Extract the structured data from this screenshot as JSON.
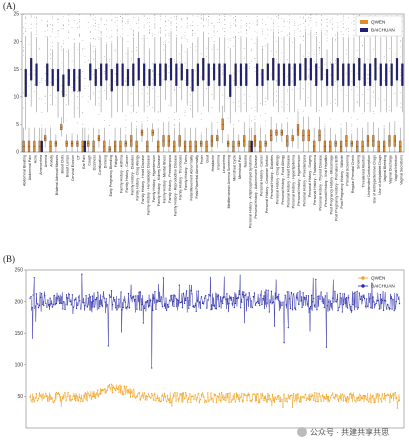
{
  "chart_data": [
    {
      "panel": "(A)",
      "type": "box",
      "legend": [
        "QWEN",
        "BAICHUAN"
      ],
      "colors": {
        "QWEN": "#e08a2c",
        "BAICHUAN": "#1f1f7a"
      },
      "ylim": [
        0,
        25
      ],
      "yticks": [
        0,
        5,
        10,
        15,
        20,
        25
      ],
      "categories": [
        "Abdominal Bloating",
        "Abdominal Pain",
        "Acne",
        "Amenorrhea",
        "Anemia",
        "Anxiety",
        "Bilateral Adnexal Masses",
        "Blood Clots",
        "Breast Lumps",
        "Cervical Erosion",
        "CT",
        "Ear Pain",
        "Cough",
        "Dizziness",
        "Constipation",
        "Drinking",
        "Early Pregnancy Bleeding",
        "Fatigue",
        "Family History - Asthma",
        "Family History - Cancer",
        "Family History - Diabetes",
        "Family History - Drug Allergy",
        "Family History - Heart Disease",
        "Family History - Hematologic Disease",
        "Family History - Hypertension",
        "Family History - Kidney Disease",
        "Family History - Mental Illness",
        "Family History - Preeclampsia",
        "Family History - Reproductive Disease",
        "Family History - Thrombosis",
        "Family History - Twins",
        "Fetal Movement Abnormality",
        "Fetal Placental Abnormality",
        "Fever",
        "Gout",
        "Headache",
        "Insomnia",
        "Leucorrhea",
        "Mediterranean Anemia Screening",
        "Menstrual Cycle",
        "Menstrual Pain",
        "Nausea",
        "Personal History - Antiphospholipid Syndrome",
        "Personal History - Autoimmune Disease",
        "Personal History - Cancer",
        "Personal History - Cesarean Section",
        "Personal History - Diabetes",
        "Personal History - Drug Allergy",
        "Personal History - Food Allergy",
        "Personal History - Heart Disease",
        "Personal History - Hyperlipidemia",
        "Personal History - Hypertension",
        "Personal History - Preeclampsia",
        "Personal History - Surgery",
        "Personal History - Thalassemia",
        "Personal History - Thyroid Disease",
        "Personal History - Viral Hepatitis",
        "Post Pregnancy History - Miscarriage",
        "Post Pregnancy History - Premature Birth",
        "Post Pregnancy History - Stillbirth",
        "Prenatal Screening",
        "Regular Prenatal Check",
        "Smoking",
        "Threatened Abortion",
        "Unintended Contraception",
        "Use of Antihypertensive Drugs",
        "Use of Antiplatelet Drugs",
        "Vaginal Bleeding",
        "Vaginal Discharge",
        "Vaginal Infection",
        "Vaginal Secretions"
      ],
      "series": [
        {
          "name": "QWEN",
          "q1": [
            0,
            0,
            0,
            0,
            2,
            0,
            1,
            4,
            1,
            1,
            1,
            0,
            1,
            0,
            2,
            0,
            0,
            0,
            0,
            1,
            1,
            0,
            3,
            0,
            3,
            0,
            1,
            1,
            0,
            1,
            0,
            0,
            0,
            1,
            0,
            1,
            2,
            4,
            1,
            0,
            1,
            1,
            0,
            1,
            0,
            1,
            2,
            3,
            3,
            1,
            2,
            3,
            2,
            2,
            0,
            2,
            0,
            0,
            1,
            0,
            1,
            1,
            0,
            0,
            1,
            1,
            0,
            0,
            1,
            1,
            0
          ],
          "q3": [
            2,
            2,
            2,
            2,
            3,
            2,
            2,
            5,
            2,
            2,
            2,
            2,
            2,
            2,
            3,
            2,
            1,
            2,
            2,
            2,
            3,
            2,
            4,
            2,
            4,
            2,
            3,
            3,
            2,
            3,
            2,
            2,
            2,
            2,
            2,
            3,
            3,
            6,
            2,
            2,
            2,
            3,
            2,
            3,
            2,
            2,
            4,
            4,
            4,
            3,
            3,
            5,
            4,
            4,
            2,
            4,
            2,
            2,
            2,
            2,
            3,
            2,
            2,
            2,
            3,
            3,
            2,
            2,
            3,
            3,
            2
          ]
        },
        {
          "name": "BAICHUAN",
          "q1": [
            10,
            13,
            12,
            0,
            12,
            12,
            11,
            10,
            12,
            11,
            11,
            0,
            13,
            12,
            12,
            13,
            11,
            12,
            12,
            12,
            12,
            13,
            12,
            12,
            12,
            12,
            13,
            13,
            12,
            13,
            12,
            11,
            12,
            13,
            12,
            13,
            12,
            12,
            10,
            12,
            12,
            12,
            0,
            12,
            12,
            13,
            13,
            12,
            12,
            12,
            12,
            13,
            13,
            13,
            12,
            13,
            12,
            12,
            13,
            12,
            12,
            12,
            13,
            12,
            12,
            13,
            12,
            12,
            12,
            13,
            12
          ],
          "q3": [
            15,
            17,
            16,
            2,
            16,
            15,
            15,
            14,
            15,
            15,
            15,
            2,
            16,
            15,
            16,
            16,
            15,
            16,
            16,
            15,
            16,
            17,
            16,
            15,
            16,
            16,
            16,
            17,
            16,
            16,
            15,
            15,
            16,
            17,
            16,
            16,
            16,
            16,
            14,
            16,
            16,
            16,
            2,
            16,
            15,
            16,
            17,
            16,
            16,
            16,
            16,
            16,
            17,
            17,
            16,
            17,
            15,
            16,
            17,
            16,
            16,
            16,
            17,
            16,
            16,
            17,
            16,
            16,
            16,
            17,
            16
          ]
        }
      ]
    },
    {
      "panel": "(B)",
      "type": "line",
      "legend": [
        "QWEN",
        "BAICHUAN"
      ],
      "colors": {
        "QWEN": "#f2a11f",
        "BAICHUAN": "#2b2ba6"
      },
      "ylim": [
        0,
        250
      ],
      "yticks": [
        50,
        100,
        150,
        200,
        250
      ],
      "n_points": 2000,
      "series": [
        {
          "name": "QWEN",
          "typical_range": [
            35,
            65
          ],
          "peak": 72
        },
        {
          "name": "BAICHUAN",
          "typical_range": [
            175,
            225
          ],
          "min": 95,
          "max": 245
        }
      ]
    }
  ],
  "watermark": "公众号 · 共建共享共思"
}
